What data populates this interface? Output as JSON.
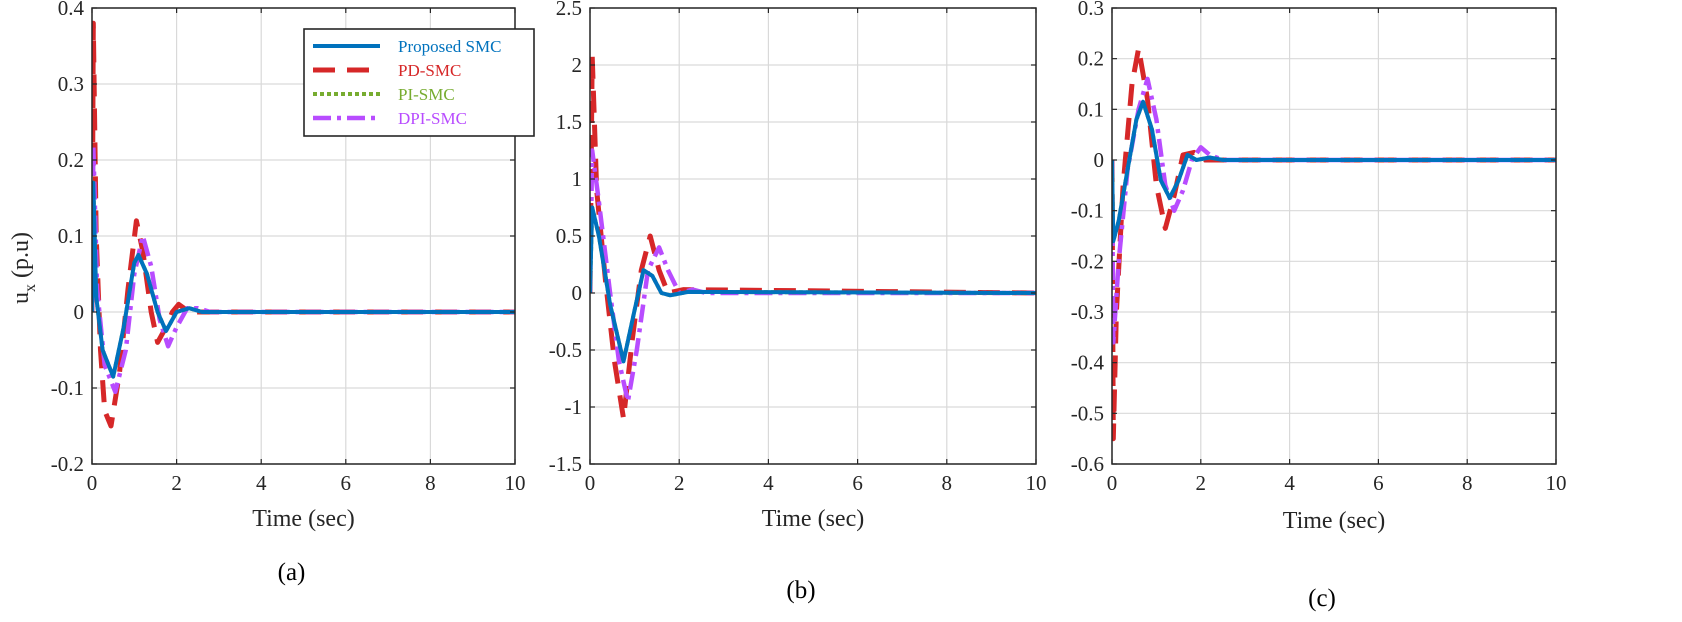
{
  "figure": {
    "ylabel_main": "u",
    "ylabel_sub": "x",
    "ylabel_unit": " (p.u)"
  },
  "legend": [
    {
      "name": "Proposed SMC",
      "color": "#0072BD",
      "dash": "solid"
    },
    {
      "name": "PD-SMC",
      "color": "#D62728",
      "dash": "dashed"
    },
    {
      "name": "PI-SMC",
      "color": "#77AC30",
      "dash": "dotted"
    },
    {
      "name": "DPI-SMC",
      "color": "#B84CFF",
      "dash": "dashdot"
    }
  ],
  "chart_data": [
    {
      "type": "line",
      "caption": "(a)",
      "xlabel": "Time (sec)",
      "ylabel": "u_x (p.u)",
      "xlim": [
        0,
        10
      ],
      "ylim": [
        -0.2,
        0.4
      ],
      "xticks": [
        "0",
        "2",
        "4",
        "6",
        "8",
        "10"
      ],
      "yticks": [
        "-0.2",
        "-0.1",
        "0",
        "0.1",
        "0.2",
        "0.3",
        "0.4"
      ],
      "grid": true,
      "legend_position": "top-right",
      "series": [
        {
          "name": "Proposed SMC",
          "points": [
            [
              0,
              0
            ],
            [
              0.03,
              0.17
            ],
            [
              0.1,
              0.02
            ],
            [
              0.25,
              -0.05
            ],
            [
              0.5,
              -0.085
            ],
            [
              0.75,
              -0.02
            ],
            [
              1.0,
              0.065
            ],
            [
              1.1,
              0.075
            ],
            [
              1.3,
              0.05
            ],
            [
              1.55,
              0.0
            ],
            [
              1.75,
              -0.025
            ],
            [
              2.0,
              0.0
            ],
            [
              2.3,
              0.005
            ],
            [
              2.6,
              0.0
            ],
            [
              10,
              0
            ]
          ]
        },
        {
          "name": "PD-SMC",
          "points": [
            [
              0,
              0
            ],
            [
              0.03,
              0.38
            ],
            [
              0.1,
              0.1
            ],
            [
              0.2,
              -0.05
            ],
            [
              0.3,
              -0.13
            ],
            [
              0.45,
              -0.15
            ],
            [
              0.65,
              -0.08
            ],
            [
              0.85,
              0.03
            ],
            [
              1.05,
              0.12
            ],
            [
              1.2,
              0.08
            ],
            [
              1.4,
              0.0
            ],
            [
              1.55,
              -0.04
            ],
            [
              1.75,
              -0.02
            ],
            [
              1.9,
              0.0
            ],
            [
              2.05,
              0.01
            ],
            [
              2.3,
              0.0
            ],
            [
              10,
              0
            ]
          ]
        },
        {
          "name": "PI-SMC",
          "points": [
            [
              0,
              0
            ],
            [
              0.03,
              0.17
            ],
            [
              0.1,
              0.02
            ],
            [
              0.25,
              -0.05
            ],
            [
              0.5,
              -0.085
            ],
            [
              0.75,
              -0.02
            ],
            [
              1.0,
              0.065
            ],
            [
              1.1,
              0.075
            ],
            [
              1.3,
              0.05
            ],
            [
              1.55,
              0.0
            ],
            [
              1.75,
              -0.025
            ],
            [
              2.0,
              0.0
            ],
            [
              2.3,
              0.005
            ],
            [
              2.6,
              0.0
            ],
            [
              10,
              0
            ]
          ]
        },
        {
          "name": "DPI-SMC",
          "points": [
            [
              0,
              0
            ],
            [
              0.03,
              0.22
            ],
            [
              0.12,
              0.03
            ],
            [
              0.3,
              -0.07
            ],
            [
              0.55,
              -0.105
            ],
            [
              0.8,
              -0.05
            ],
            [
              1.0,
              0.05
            ],
            [
              1.2,
              0.1
            ],
            [
              1.4,
              0.06
            ],
            [
              1.6,
              -0.01
            ],
            [
              1.8,
              -0.045
            ],
            [
              2.0,
              -0.02
            ],
            [
              2.25,
              0.005
            ],
            [
              2.5,
              0.005
            ],
            [
              2.8,
              0.0
            ],
            [
              10,
              0
            ]
          ]
        }
      ]
    },
    {
      "type": "line",
      "caption": "(b)",
      "xlabel": "Time (sec)",
      "ylabel": "",
      "xlim": [
        0,
        10
      ],
      "ylim": [
        -1.5,
        2.5
      ],
      "xticks": [
        "0",
        "2",
        "4",
        "6",
        "8",
        "10"
      ],
      "yticks": [
        "-1.5",
        "-1",
        "-0.5",
        "0",
        "0.5",
        "1",
        "1.5",
        "2",
        "2.5"
      ],
      "grid": true,
      "series": [
        {
          "name": "Proposed SMC",
          "points": [
            [
              0,
              0
            ],
            [
              0.05,
              0.75
            ],
            [
              0.2,
              0.5
            ],
            [
              0.45,
              -0.1
            ],
            [
              0.75,
              -0.6
            ],
            [
              1.0,
              -0.15
            ],
            [
              1.2,
              0.2
            ],
            [
              1.4,
              0.15
            ],
            [
              1.6,
              0.0
            ],
            [
              1.8,
              -0.02
            ],
            [
              2.2,
              0.01
            ],
            [
              10,
              0
            ]
          ]
        },
        {
          "name": "PD-SMC",
          "points": [
            [
              0,
              0
            ],
            [
              0.05,
              2.08
            ],
            [
              0.15,
              0.9
            ],
            [
              0.35,
              0.1
            ],
            [
              0.55,
              -0.6
            ],
            [
              0.75,
              -1.1
            ],
            [
              0.95,
              -0.4
            ],
            [
              1.15,
              0.2
            ],
            [
              1.35,
              0.5
            ],
            [
              1.55,
              0.2
            ],
            [
              1.75,
              0.0
            ],
            [
              2.1,
              0.03
            ],
            [
              10,
              0
            ]
          ]
        },
        {
          "name": "PI-SMC",
          "points": [
            [
              0,
              0
            ],
            [
              0.05,
              0.75
            ],
            [
              0.2,
              0.5
            ],
            [
              0.45,
              -0.1
            ],
            [
              0.75,
              -0.6
            ],
            [
              1.0,
              -0.15
            ],
            [
              1.2,
              0.2
            ],
            [
              1.4,
              0.15
            ],
            [
              1.6,
              0.0
            ],
            [
              1.8,
              -0.02
            ],
            [
              2.2,
              0.01
            ],
            [
              10,
              0
            ]
          ]
        },
        {
          "name": "DPI-SMC",
          "points": [
            [
              0,
              0
            ],
            [
              0.05,
              1.25
            ],
            [
              0.2,
              0.8
            ],
            [
              0.45,
              0.0
            ],
            [
              0.65,
              -0.6
            ],
            [
              0.85,
              -0.95
            ],
            [
              1.05,
              -0.5
            ],
            [
              1.3,
              0.2
            ],
            [
              1.55,
              0.4
            ],
            [
              1.75,
              0.2
            ],
            [
              2.0,
              0.0
            ],
            [
              2.3,
              0.03
            ],
            [
              2.6,
              0.0
            ],
            [
              10,
              0
            ]
          ]
        }
      ]
    },
    {
      "type": "line",
      "caption": "(c)",
      "xlabel": "Time (sec)",
      "ylabel": "",
      "xlim": [
        0,
        10
      ],
      "ylim": [
        -0.6,
        0.3
      ],
      "xticks": [
        "0",
        "2",
        "4",
        "6",
        "8",
        "10"
      ],
      "yticks": [
        "-0.6",
        "-0.5",
        "-0.4",
        "-0.3",
        "-0.2",
        "-0.1",
        "0",
        "0.1",
        "0.2",
        "0.3"
      ],
      "grid": true,
      "series": [
        {
          "name": "Proposed SMC",
          "points": [
            [
              0,
              0
            ],
            [
              0.03,
              -0.16
            ],
            [
              0.15,
              -0.12
            ],
            [
              0.35,
              -0.02
            ],
            [
              0.55,
              0.08
            ],
            [
              0.7,
              0.115
            ],
            [
              0.9,
              0.06
            ],
            [
              1.1,
              -0.04
            ],
            [
              1.3,
              -0.075
            ],
            [
              1.5,
              -0.04
            ],
            [
              1.7,
              0.01
            ],
            [
              1.9,
              0.0
            ],
            [
              2.2,
              0.005
            ],
            [
              2.5,
              0.0
            ],
            [
              10,
              0
            ]
          ]
        },
        {
          "name": "PD-SMC",
          "points": [
            [
              0,
              0
            ],
            [
              0.03,
              -0.55
            ],
            [
              0.1,
              -0.3
            ],
            [
              0.25,
              -0.05
            ],
            [
              0.45,
              0.15
            ],
            [
              0.6,
              0.22
            ],
            [
              0.8,
              0.12
            ],
            [
              1.0,
              -0.05
            ],
            [
              1.2,
              -0.135
            ],
            [
              1.4,
              -0.07
            ],
            [
              1.6,
              0.01
            ],
            [
              1.85,
              0.015
            ],
            [
              2.1,
              0.0
            ],
            [
              10,
              0
            ]
          ]
        },
        {
          "name": "PI-SMC",
          "points": [
            [
              0,
              0
            ],
            [
              0.03,
              -0.16
            ],
            [
              0.15,
              -0.12
            ],
            [
              0.35,
              -0.02
            ],
            [
              0.55,
              0.08
            ],
            [
              0.7,
              0.115
            ],
            [
              0.9,
              0.06
            ],
            [
              1.1,
              -0.04
            ],
            [
              1.3,
              -0.075
            ],
            [
              1.5,
              -0.04
            ],
            [
              1.7,
              0.01
            ],
            [
              1.9,
              0.0
            ],
            [
              2.2,
              0.005
            ],
            [
              2.5,
              0.0
            ],
            [
              10,
              0
            ]
          ]
        },
        {
          "name": "DPI-SMC",
          "points": [
            [
              0,
              0
            ],
            [
              0.03,
              -0.36
            ],
            [
              0.15,
              -0.2
            ],
            [
              0.35,
              -0.02
            ],
            [
              0.6,
              0.1
            ],
            [
              0.8,
              0.16
            ],
            [
              1.0,
              0.08
            ],
            [
              1.2,
              -0.05
            ],
            [
              1.4,
              -0.1
            ],
            [
              1.6,
              -0.06
            ],
            [
              1.8,
              0.0
            ],
            [
              2.0,
              0.025
            ],
            [
              2.2,
              0.01
            ],
            [
              2.5,
              0.0
            ],
            [
              10,
              0
            ]
          ]
        }
      ]
    }
  ]
}
